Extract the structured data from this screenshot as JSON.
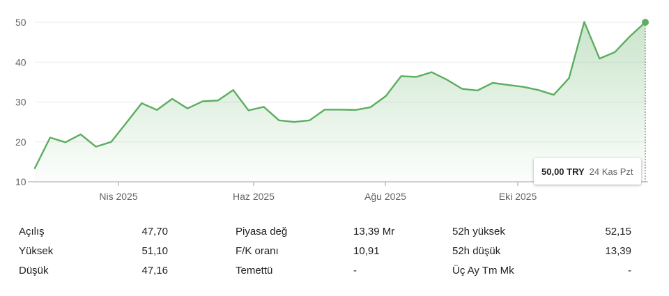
{
  "chart_data": {
    "type": "line",
    "title": "",
    "xlabel": "",
    "ylabel": "",
    "ylim": [
      10,
      50
    ],
    "y_ticks": [
      10,
      20,
      30,
      40,
      50
    ],
    "x_tick_labels": [
      "Nis 2025",
      "Haz 2025",
      "Ağu 2025",
      "Eki 2025"
    ],
    "grid": true,
    "line_color": "#5bad5f",
    "fill_color": "#5bad5f",
    "series": [
      {
        "values": [
          13.4,
          21.1,
          19.9,
          21.9,
          18.8,
          20.0,
          24.8,
          29.7,
          28.0,
          30.8,
          28.4,
          30.2,
          30.4,
          33.0,
          27.9,
          28.8,
          25.4,
          25.0,
          25.4,
          28.1,
          28.1,
          28.0,
          28.7,
          31.5,
          36.5,
          36.3,
          37.5,
          35.6,
          33.3,
          32.9,
          34.8,
          34.3,
          33.8,
          33.0,
          31.8,
          36.0,
          50.1,
          40.9,
          42.5,
          46.5,
          50.0
        ]
      }
    ]
  },
  "tooltip": {
    "price": "50,00 TRY",
    "date": "24 Kas Pzt"
  },
  "stats": [
    [
      {
        "label": "Açılış",
        "value": "47,70"
      },
      {
        "label": "Piyasa değ",
        "value": "13,39 Mr"
      },
      {
        "label": "52h yüksek",
        "value": "52,15"
      }
    ],
    [
      {
        "label": "Yüksek",
        "value": "51,10"
      },
      {
        "label": "F/K oranı",
        "value": "10,91"
      },
      {
        "label": "52h düşük",
        "value": "13,39"
      }
    ],
    [
      {
        "label": "Düşük",
        "value": "47,16"
      },
      {
        "label": "Temettü",
        "value": "-"
      },
      {
        "label": "Üç Ay Tm Mk",
        "value": "-"
      }
    ]
  ]
}
